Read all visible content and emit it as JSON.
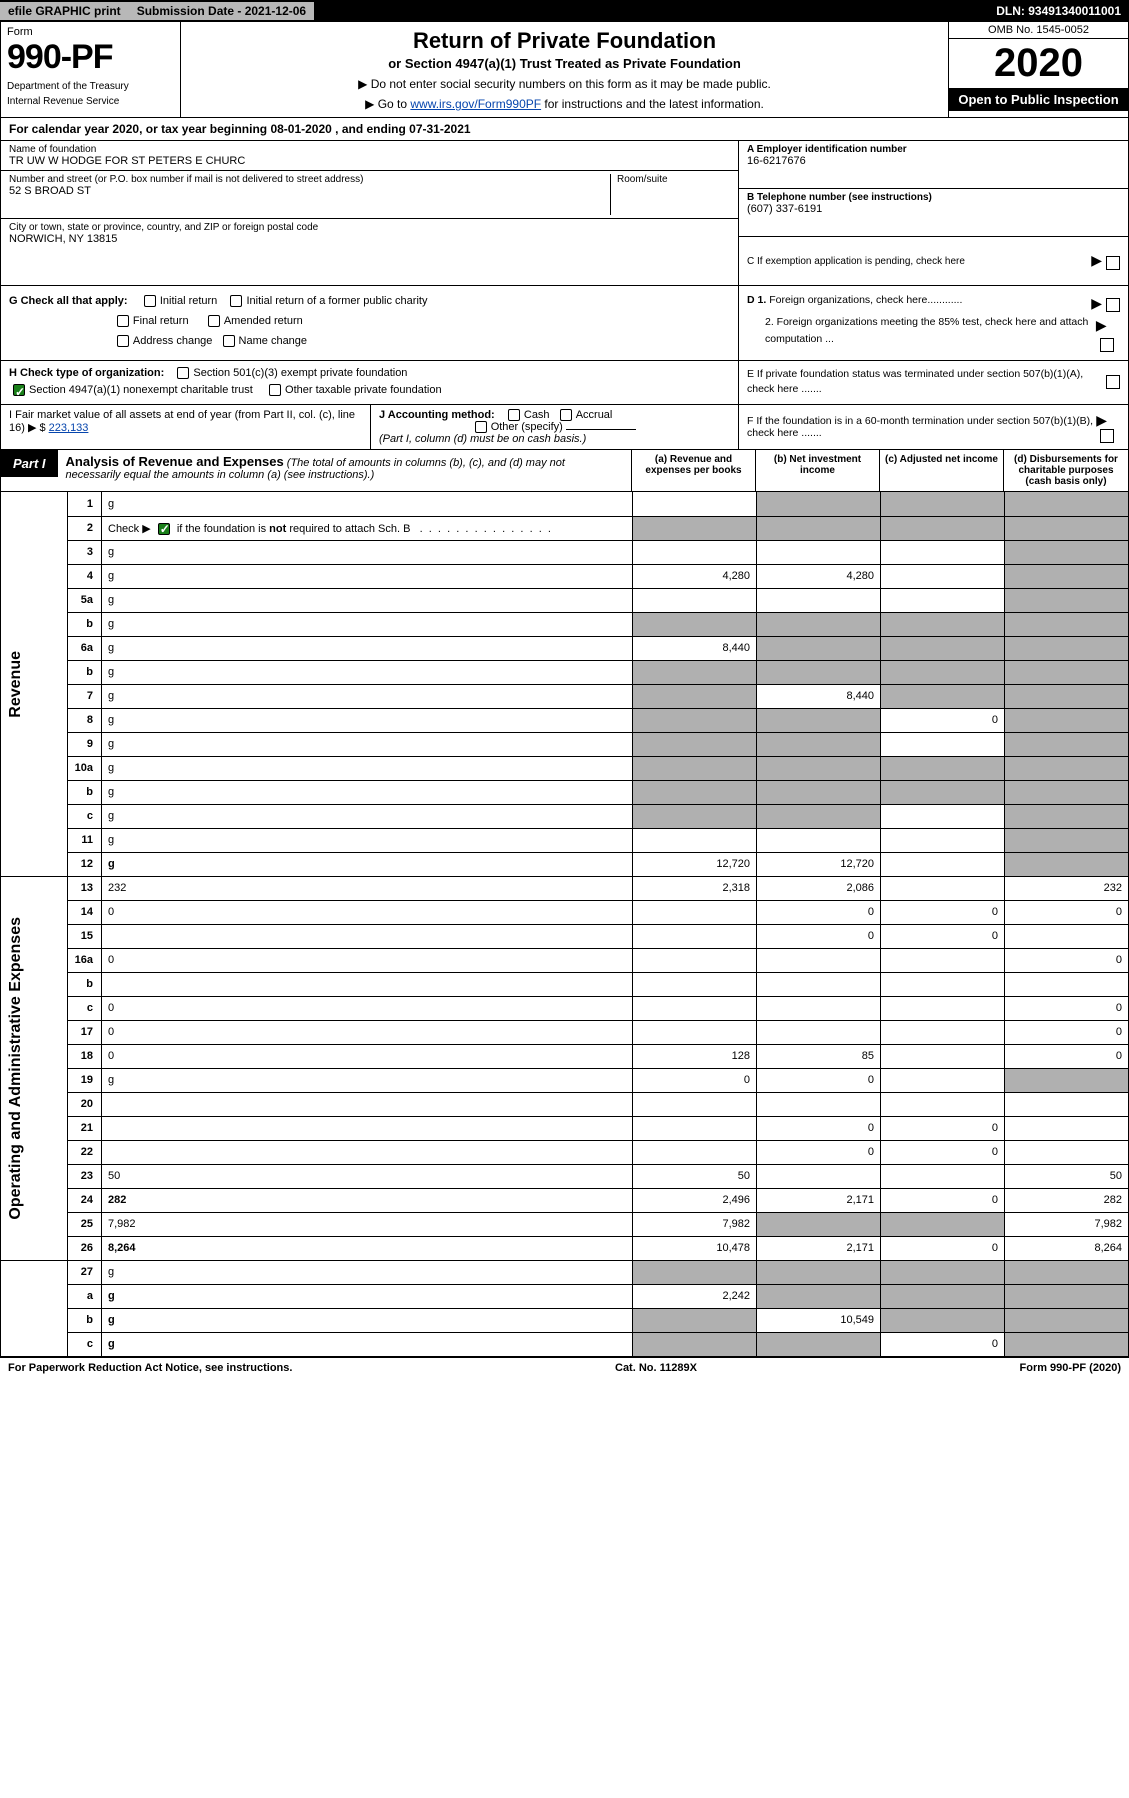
{
  "colors": {
    "black": "#000000",
    "grey_fill": "#b0b0b0",
    "grey_light": "#b8b8b8",
    "link": "#0645ad",
    "check_green": "#1a7f1a"
  },
  "top": {
    "efile": "efile GRAPHIC print",
    "sub_label": "Submission Date - 2021-12-06",
    "dln": "DLN: 93491340011001"
  },
  "header": {
    "form_word": "Form",
    "form_num": "990-PF",
    "dept": "Department of the Treasury",
    "irs": "Internal Revenue Service",
    "title": "Return of Private Foundation",
    "subtitle": "or Section 4947(a)(1) Trust Treated as Private Foundation",
    "note1": "▶ Do not enter social security numbers on this form as it may be made public.",
    "note2_pre": "▶ Go to ",
    "note2_link": "www.irs.gov/Form990PF",
    "note2_post": " for instructions and the latest information.",
    "omb": "OMB No. 1545-0052",
    "year": "2020",
    "otp": "Open to Public Inspection"
  },
  "calendar": "For calendar year 2020, or tax year beginning 08-01-2020                      , and ending 07-31-2021",
  "entity": {
    "name_lbl": "Name of foundation",
    "name": "TR UW W HODGE FOR ST PETERS E CHURC",
    "addr_lbl": "Number and street (or P.O. box number if mail is not delivered to street address)",
    "room_lbl": "Room/suite",
    "addr": "52 S BROAD ST",
    "city_lbl": "City or town, state or province, country, and ZIP or foreign postal code",
    "city": "NORWICH, NY  13815",
    "a_lbl": "A Employer identification number",
    "a_val": "16-6217676",
    "b_lbl": "B Telephone number (see instructions)",
    "b_val": "(607) 337-6191",
    "c_lbl": "C If exemption application is pending, check here"
  },
  "boxG": {
    "lead": "G Check all that apply:",
    "opts": [
      "Initial return",
      "Initial return of a former public charity",
      "Final return",
      "Amended return",
      "Address change",
      "Name change"
    ],
    "D1": "D 1. Foreign organizations, check here............",
    "D2": "2. Foreign organizations meeting the 85% test, check here and attach computation ...",
    "E": "E  If private foundation status was terminated under section 507(b)(1)(A), check here ......."
  },
  "boxH": {
    "lead": "H Check type of organization:",
    "o1": "Section 501(c)(3) exempt private foundation",
    "o2": "Section 4947(a)(1) nonexempt charitable trust",
    "o3": "Other taxable private foundation"
  },
  "boxIJ": {
    "I": "I Fair market value of all assets at end of year (from Part II, col. (c), line 16) ▶ $",
    "I_val": "223,133",
    "J": "J Accounting method:",
    "J_cash": "Cash",
    "J_accr": "Accrual",
    "J_other": "Other (specify)",
    "J_note": "(Part I, column (d) must be on cash basis.)",
    "F": "F  If the foundation is in a 60-month termination under section 507(b)(1)(B), check here ......."
  },
  "part1": {
    "tag": "Part I",
    "title": "Analysis of Revenue and Expenses",
    "note": " (The total of amounts in columns (b), (c), and (d) may not necessarily equal the amounts in column (a) (see instructions).)",
    "cols": {
      "a": "(a)  Revenue and expenses per books",
      "b": "(b)  Net investment income",
      "c": "(c)  Adjusted net income",
      "d": "(d)  Disbursements for charitable purposes (cash basis only)"
    }
  },
  "side_labels": {
    "rev": "Revenue",
    "exp": "Operating and Administrative Expenses"
  },
  "rows": [
    {
      "n": "1",
      "d": "g",
      "a": "",
      "b": "g",
      "c": "g"
    },
    {
      "n": "2",
      "d": "g",
      "a": "g",
      "b": "g",
      "c": "g",
      "check": true
    },
    {
      "n": "3",
      "d": "g",
      "a": "",
      "b": "",
      "c": ""
    },
    {
      "n": "4",
      "d": "g",
      "a": "4,280",
      "b": "4,280",
      "c": ""
    },
    {
      "n": "5a",
      "d": "g",
      "a": "",
      "b": "",
      "c": ""
    },
    {
      "n": "b",
      "d": "g",
      "a": "g",
      "b": "g",
      "c": "g"
    },
    {
      "n": "6a",
      "d": "g",
      "a": "8,440",
      "b": "g",
      "c": "g"
    },
    {
      "n": "b",
      "d": "g",
      "a": "g",
      "b": "g",
      "c": "g"
    },
    {
      "n": "7",
      "d": "g",
      "a": "g",
      "b": "8,440",
      "c": "g"
    },
    {
      "n": "8",
      "d": "g",
      "a": "g",
      "b": "g",
      "c": "0"
    },
    {
      "n": "9",
      "d": "g",
      "a": "g",
      "b": "g",
      "c": ""
    },
    {
      "n": "10a",
      "d": "g",
      "a": "g",
      "b": "g",
      "c": "g"
    },
    {
      "n": "b",
      "d": "g",
      "a": "g",
      "b": "g",
      "c": "g"
    },
    {
      "n": "c",
      "d": "g",
      "a": "g",
      "b": "g",
      "c": ""
    },
    {
      "n": "11",
      "d": "g",
      "a": "",
      "b": "",
      "c": ""
    },
    {
      "n": "12",
      "d": "g",
      "a": "12,720",
      "b": "12,720",
      "c": "",
      "bold": true
    }
  ],
  "exp_rows": [
    {
      "n": "13",
      "d": "232",
      "a": "2,318",
      "b": "2,086",
      "c": ""
    },
    {
      "n": "14",
      "d": "0",
      "a": "",
      "b": "0",
      "c": "0"
    },
    {
      "n": "15",
      "d": "",
      "a": "",
      "b": "0",
      "c": "0"
    },
    {
      "n": "16a",
      "d": "0",
      "a": "",
      "b": "",
      "c": ""
    },
    {
      "n": "b",
      "d": "",
      "a": "",
      "b": "",
      "c": ""
    },
    {
      "n": "c",
      "d": "0",
      "a": "",
      "b": "",
      "c": ""
    },
    {
      "n": "17",
      "d": "0",
      "a": "",
      "b": "",
      "c": ""
    },
    {
      "n": "18",
      "d": "0",
      "a": "128",
      "b": "85",
      "c": ""
    },
    {
      "n": "19",
      "d": "g",
      "a": "0",
      "b": "0",
      "c": ""
    },
    {
      "n": "20",
      "d": "",
      "a": "",
      "b": "",
      "c": ""
    },
    {
      "n": "21",
      "d": "",
      "a": "",
      "b": "0",
      "c": "0"
    },
    {
      "n": "22",
      "d": "",
      "a": "",
      "b": "0",
      "c": "0"
    },
    {
      "n": "23",
      "d": "50",
      "a": "50",
      "b": "",
      "c": ""
    },
    {
      "n": "24",
      "d": "282",
      "a": "2,496",
      "b": "2,171",
      "c": "0",
      "bold": true
    },
    {
      "n": "25",
      "d": "7,982",
      "a": "7,982",
      "b": "g",
      "c": "g"
    },
    {
      "n": "26",
      "d": "8,264",
      "a": "10,478",
      "b": "2,171",
      "c": "0",
      "bold": true
    }
  ],
  "net_rows": [
    {
      "n": "27",
      "d": "g",
      "a": "g",
      "b": "g",
      "c": "g"
    },
    {
      "n": "a",
      "d": "g",
      "a": "2,242",
      "b": "g",
      "c": "g",
      "bold": true
    },
    {
      "n": "b",
      "d": "g",
      "a": "g",
      "b": "10,549",
      "c": "g",
      "bold": true
    },
    {
      "n": "c",
      "d": "g",
      "a": "g",
      "b": "g",
      "c": "0",
      "bold": true
    }
  ],
  "footer": {
    "left": "For Paperwork Reduction Act Notice, see instructions.",
    "mid": "Cat. No. 11289X",
    "right": "Form 990-PF (2020)"
  }
}
